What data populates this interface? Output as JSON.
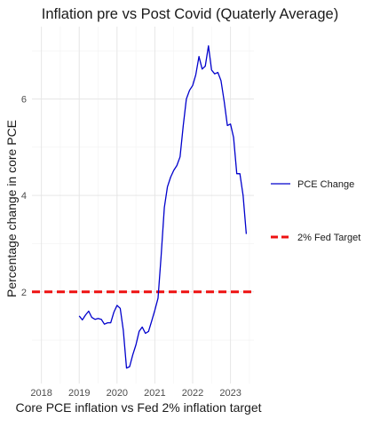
{
  "chart_data": {
    "type": "line",
    "title": "Inflation pre vs Post Covid  (Quaterly Average)",
    "xlabel": "Core PCE inflation vs Fed 2% inflation target",
    "ylabel": "Percentage change in core PCE",
    "xlim": [
      2017.75,
      2023.62
    ],
    "ylim": [
      0.1,
      7.5
    ],
    "x_ticks": [
      2018,
      2019,
      2020,
      2021,
      2022,
      2023
    ],
    "y_ticks": [
      2,
      4,
      6
    ],
    "grid": true,
    "legend_position": "right",
    "series": [
      {
        "name": "PCE Change",
        "color": "#0000cc",
        "x": [
          2019.0,
          2019.083,
          2019.167,
          2019.25,
          2019.333,
          2019.417,
          2019.5,
          2019.583,
          2019.667,
          2019.75,
          2019.833,
          2019.917,
          2020.0,
          2020.083,
          2020.167,
          2020.25,
          2020.333,
          2020.417,
          2020.5,
          2020.583,
          2020.667,
          2020.75,
          2020.833,
          2020.917,
          2021.0,
          2021.083,
          2021.167,
          2021.25,
          2021.333,
          2021.417,
          2021.5,
          2021.583,
          2021.667,
          2021.75,
          2021.833,
          2021.917,
          2022.0,
          2022.083,
          2022.167,
          2022.25,
          2022.333,
          2022.417,
          2022.5,
          2022.583,
          2022.667,
          2022.75,
          2022.833,
          2022.917,
          2023.0,
          2023.083,
          2023.167,
          2023.25,
          2023.333,
          2023.417
        ],
        "y": [
          1.5,
          1.42,
          1.52,
          1.6,
          1.47,
          1.43,
          1.45,
          1.43,
          1.33,
          1.36,
          1.36,
          1.58,
          1.72,
          1.66,
          1.2,
          0.42,
          0.45,
          0.7,
          0.9,
          1.18,
          1.27,
          1.14,
          1.18,
          1.4,
          1.62,
          1.87,
          2.75,
          3.75,
          4.18,
          4.38,
          4.52,
          4.62,
          4.8,
          5.45,
          6.0,
          6.18,
          6.28,
          6.5,
          6.88,
          6.62,
          6.68,
          7.1,
          6.6,
          6.52,
          6.55,
          6.38,
          5.95,
          5.45,
          5.48,
          5.2,
          4.45,
          4.45,
          4.0,
          3.2
        ]
      },
      {
        "name": "2% Fed Target",
        "color": "#ee1111",
        "value": 2
      }
    ]
  }
}
